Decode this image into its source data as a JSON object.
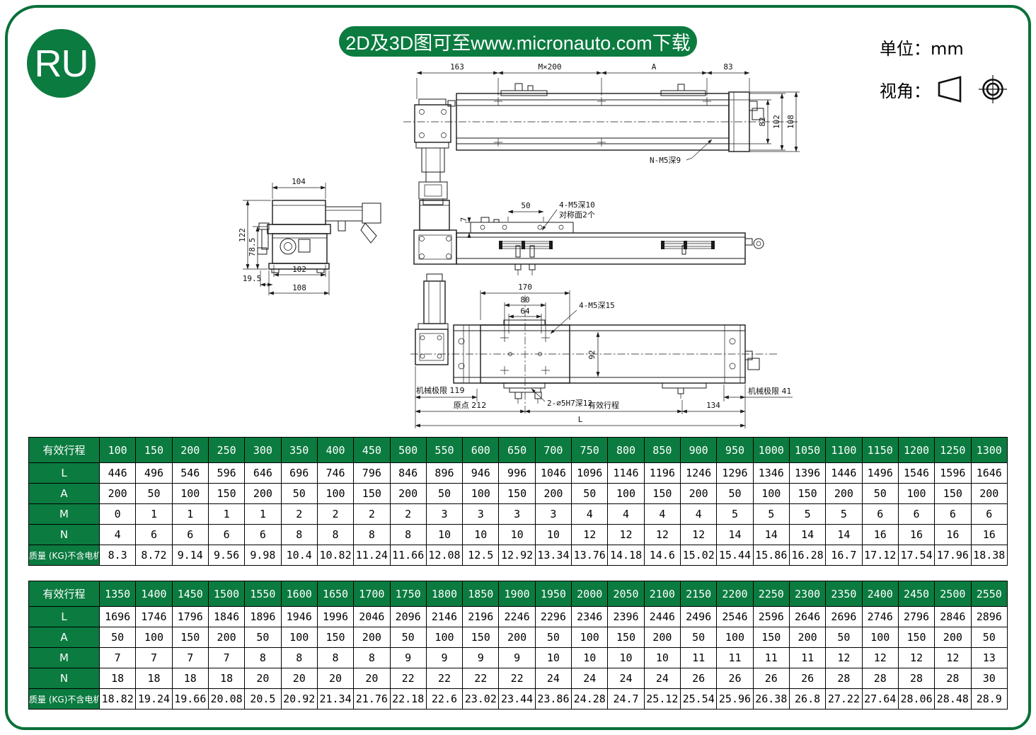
{
  "page": {
    "logo_text": "RU",
    "banner_text": "2D及3D图可至www.micronauto.com下载",
    "unit_label": "单位：mm",
    "view_angle_label": "视角：",
    "colors": {
      "green": "#0B7B40",
      "border_green": "#0A7039"
    }
  },
  "drawing": {
    "top_view": {
      "dim_163": "163",
      "dim_m200": "M×200",
      "dim_a": "A",
      "dim_83": "83",
      "dim_82": "82",
      "dim_102": "102",
      "dim_108": "108",
      "note_holes": "N-M5深9"
    },
    "side_view": {
      "dim_104": "104",
      "dim_122": "122",
      "dim_78_5": "78.5",
      "dim_102": "102",
      "dim_19_5": "19.5",
      "dim_108": "108"
    },
    "front_view": {
      "dim_7": "7",
      "dim_50": "50",
      "note_line1": "4-M5深10",
      "note_line2": "对称面2个"
    },
    "bottom_view": {
      "dim_170": "170",
      "dim_80": "80",
      "dim_64": "64",
      "dim_92": "92",
      "dim_134": "134",
      "dim_L": "L",
      "note_m5": "4-M5深15",
      "note_pin": "2-∅5H7深12",
      "mech_limit_left": "机械极限 119",
      "origin": "原点 212",
      "effective_stroke": "有效行程",
      "mech_limit_right": "机械极限 41"
    }
  },
  "tables": [
    {
      "header_label": "有效行程",
      "strokes": [
        "100",
        "150",
        "200",
        "250",
        "300",
        "350",
        "400",
        "450",
        "500",
        "550",
        "600",
        "650",
        "700",
        "750",
        "800",
        "850",
        "900",
        "950",
        "1000",
        "1050",
        "1100",
        "1150",
        "1200",
        "1250",
        "1300"
      ],
      "rows": [
        {
          "label": "L",
          "values": [
            "446",
            "496",
            "546",
            "596",
            "646",
            "696",
            "746",
            "796",
            "846",
            "896",
            "946",
            "996",
            "1046",
            "1096",
            "1146",
            "1196",
            "1246",
            "1296",
            "1346",
            "1396",
            "1446",
            "1496",
            "1546",
            "1596",
            "1646"
          ]
        },
        {
          "label": "A",
          "values": [
            "200",
            "50",
            "100",
            "150",
            "200",
            "50",
            "100",
            "150",
            "200",
            "50",
            "100",
            "150",
            "200",
            "50",
            "100",
            "150",
            "200",
            "50",
            "100",
            "150",
            "200",
            "50",
            "100",
            "150",
            "200"
          ]
        },
        {
          "label": "M",
          "values": [
            "0",
            "1",
            "1",
            "1",
            "1",
            "2",
            "2",
            "2",
            "2",
            "3",
            "3",
            "3",
            "3",
            "4",
            "4",
            "4",
            "4",
            "5",
            "5",
            "5",
            "5",
            "6",
            "6",
            "6",
            "6"
          ]
        },
        {
          "label": "N",
          "values": [
            "4",
            "6",
            "6",
            "6",
            "6",
            "8",
            "8",
            "8",
            "8",
            "10",
            "10",
            "10",
            "10",
            "12",
            "12",
            "12",
            "12",
            "14",
            "14",
            "14",
            "14",
            "16",
            "16",
            "16",
            "16"
          ]
        },
        {
          "label": "质量 (KG)不含电机",
          "values": [
            "8.3",
            "8.72",
            "9.14",
            "9.56",
            "9.98",
            "10.4",
            "10.82",
            "11.24",
            "11.66",
            "12.08",
            "12.5",
            "12.92",
            "13.34",
            "13.76",
            "14.18",
            "14.6",
            "15.02",
            "15.44",
            "15.86",
            "16.28",
            "16.7",
            "17.12",
            "17.54",
            "17.96",
            "18.38"
          ]
        }
      ]
    },
    {
      "header_label": "有效行程",
      "strokes": [
        "1350",
        "1400",
        "1450",
        "1500",
        "1550",
        "1600",
        "1650",
        "1700",
        "1750",
        "1800",
        "1850",
        "1900",
        "1950",
        "2000",
        "2050",
        "2100",
        "2150",
        "2200",
        "2250",
        "2300",
        "2350",
        "2400",
        "2450",
        "2500",
        "2550"
      ],
      "rows": [
        {
          "label": "L",
          "values": [
            "1696",
            "1746",
            "1796",
            "1846",
            "1896",
            "1946",
            "1996",
            "2046",
            "2096",
            "2146",
            "2196",
            "2246",
            "2296",
            "2346",
            "2396",
            "2446",
            "2496",
            "2546",
            "2596",
            "2646",
            "2696",
            "2746",
            "2796",
            "2846",
            "2896"
          ]
        },
        {
          "label": "A",
          "values": [
            "50",
            "100",
            "150",
            "200",
            "50",
            "100",
            "150",
            "200",
            "50",
            "100",
            "150",
            "200",
            "50",
            "100",
            "150",
            "200",
            "50",
            "100",
            "150",
            "200",
            "50",
            "100",
            "150",
            "200",
            "50"
          ]
        },
        {
          "label": "M",
          "values": [
            "7",
            "7",
            "7",
            "7",
            "8",
            "8",
            "8",
            "8",
            "9",
            "9",
            "9",
            "9",
            "10",
            "10",
            "10",
            "10",
            "11",
            "11",
            "11",
            "11",
            "12",
            "12",
            "12",
            "12",
            "13"
          ]
        },
        {
          "label": "N",
          "values": [
            "18",
            "18",
            "18",
            "18",
            "20",
            "20",
            "20",
            "20",
            "22",
            "22",
            "22",
            "22",
            "24",
            "24",
            "24",
            "24",
            "26",
            "26",
            "26",
            "26",
            "28",
            "28",
            "28",
            "28",
            "30"
          ]
        },
        {
          "label": "质量 (KG)不含电机",
          "values": [
            "18.82",
            "19.24",
            "19.66",
            "20.08",
            "20.5",
            "20.92",
            "21.34",
            "21.76",
            "22.18",
            "22.6",
            "23.02",
            "23.44",
            "23.86",
            "24.28",
            "24.7",
            "25.12",
            "25.54",
            "25.96",
            "26.38",
            "26.8",
            "27.22",
            "27.64",
            "28.06",
            "28.48",
            "28.9"
          ]
        }
      ]
    }
  ]
}
